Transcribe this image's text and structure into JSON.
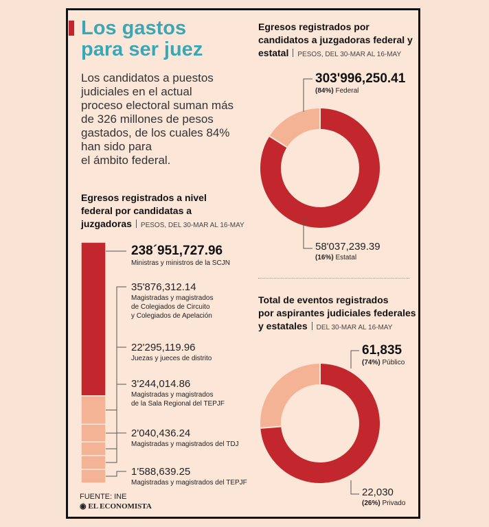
{
  "title_line1": "Los gastos",
  "title_line2": "para ser juez",
  "intro_lines": [
    "Los candidatos a puestos",
    "judiciales en el actual",
    "proceso electoral suman más",
    "de 326 millones de pesos",
    "gastados, de los cuales 84%",
    "han sido para",
    "el ámbito federal."
  ],
  "colors": {
    "red": "#c1272d",
    "peach": "#f4b394",
    "teal": "#3aa7b7"
  },
  "left_section": {
    "title_lines": [
      "Egresos registrados a nivel",
      "federal por candidatas a",
      "juzgadoras"
    ],
    "subtitle": "PESOS, DEL 30-MAR AL 16-MAY"
  },
  "top_right": {
    "title_lines": [
      "Egresos registrados por",
      "candidatos a juzgadoras federal y",
      "estatal"
    ],
    "subtitle": "PESOS, DEL 30-MAR AL 16-MAY"
  },
  "bottom_right": {
    "title_lines": [
      "Total de eventos registrados",
      "por aspirantes judiciales federales",
      "y estatales"
    ],
    "subtitle": "DEL 30-MAR AL 16-MAY"
  },
  "source": "FUENTE: INE",
  "brand": "EL ECONOMISTA",
  "chart_data": [
    {
      "type": "bar",
      "stacked": true,
      "categories": [
        "Ministras y ministros de la SCJN",
        "Magistradas y magistrados de Colegiados de Circuito y Colegiados de Apelación",
        "Juezas y jueces de distrito",
        "Magistradas y magistrados de la Sala Regional del TEPJF",
        "Magistradas y magistrados del TDJ",
        "Magistradas y magistrados del TEPJF"
      ],
      "values": [
        238951727.96,
        35876312.14,
        22295119.96,
        3244014.86,
        2040436.24,
        1588639.25
      ],
      "value_labels": [
        "238´951,727.96",
        "35'876,312.14",
        "22'295,119.96",
        "3'244,014.86",
        "2'040,436.24",
        "1'588,639.25"
      ],
      "caption_lines": [
        [
          "Ministras y ministros de la SCJN"
        ],
        [
          "Magistradas y magistrados",
          "de Colegiados de Circuito",
          "y Colegiados de Apelación"
        ],
        [
          "Juezas y jueces de distrito"
        ],
        [
          "Magistradas y magistrados",
          "de la Sala Regional del TEPJF"
        ],
        [
          "Magistradas y magistrados del TDJ"
        ],
        [
          "Magistradas y magistrados del TEPJF"
        ]
      ]
    },
    {
      "type": "pie",
      "donut": true,
      "labels": [
        "Federal",
        "Estatal"
      ],
      "values": [
        303996250.41,
        58037239.39
      ],
      "value_labels": [
        "303'996,250.41",
        "58'037,239.39"
      ],
      "percent_labels": [
        "(84%)",
        "(16%)"
      ]
    },
    {
      "type": "pie",
      "donut": true,
      "labels": [
        "Público",
        "Privado"
      ],
      "values": [
        61835,
        22030
      ],
      "value_labels": [
        "61,835",
        "22,030"
      ],
      "percent_labels": [
        "(74%)",
        "(26%)"
      ]
    }
  ]
}
